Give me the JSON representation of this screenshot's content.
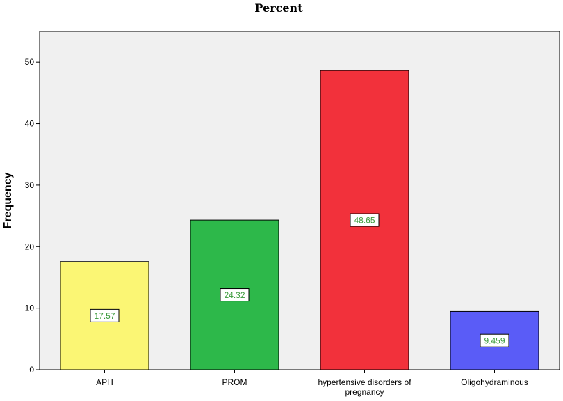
{
  "chart_data": {
    "type": "bar",
    "title": "Percent",
    "xlabel": "",
    "ylabel": "Frequency",
    "ylim": [
      0,
      55
    ],
    "yticks": [
      0,
      10,
      20,
      30,
      40,
      50
    ],
    "grid": false,
    "categories": [
      [
        "APH"
      ],
      [
        "PROM"
      ],
      [
        "hypertensive disorders of",
        "pregnancy"
      ],
      [
        "Oligohydraminous"
      ]
    ],
    "values": [
      17.57,
      24.32,
      48.65,
      9.459
    ],
    "data_labels": [
      "17.57",
      "24.32",
      "48.65",
      "9.459"
    ],
    "colors": [
      "#fbf674",
      "#2db84a",
      "#f2313b",
      "#5a5cf7"
    ],
    "label_text_color": "#3a9a3a",
    "plot_background": "#f0f0f0"
  }
}
